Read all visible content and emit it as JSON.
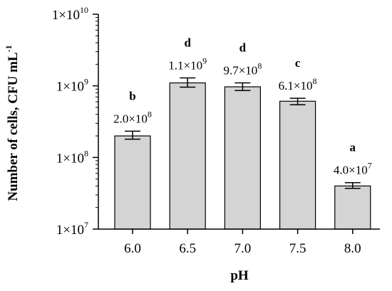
{
  "chart_data": {
    "type": "bar",
    "xlabel": "pH",
    "ylabel": "Number of cells, CFU mL",
    "ylabel_superscript": "-1",
    "y_scale": "log",
    "ylim": [
      10000000,
      10000000000
    ],
    "y_ticks": [
      {
        "value": 10000000,
        "base": "1×10",
        "exp": "7"
      },
      {
        "value": 100000000,
        "base": "1×10",
        "exp": "8"
      },
      {
        "value": 1000000000,
        "base": "1×10",
        "exp": "9"
      },
      {
        "value": 10000000000,
        "base": "1×10",
        "exp": "10"
      }
    ],
    "categories": [
      "6.0",
      "6.5",
      "7.0",
      "7.5",
      "8.0"
    ],
    "values": [
      200000000,
      1100000000,
      970000000,
      610000000,
      40000000
    ],
    "errors_upper": [
      233000000,
      1290000000,
      1100000000,
      670000000,
      44500000
    ],
    "errors_lower": [
      180000000,
      960000000,
      860000000,
      545000000,
      37000000
    ],
    "data_labels": [
      {
        "base": "2.0×10",
        "exp": "8"
      },
      {
        "base": "1.1×10",
        "exp": "9"
      },
      {
        "base": "9.7×10",
        "exp": "8"
      },
      {
        "base": "6.1×10",
        "exp": "8"
      },
      {
        "base": "4.0×10",
        "exp": "7"
      }
    ],
    "significance_letters": [
      "b",
      "d",
      "d",
      "c",
      "a"
    ],
    "bar_color": "#d4d4d4",
    "edge_color": "#000000"
  }
}
